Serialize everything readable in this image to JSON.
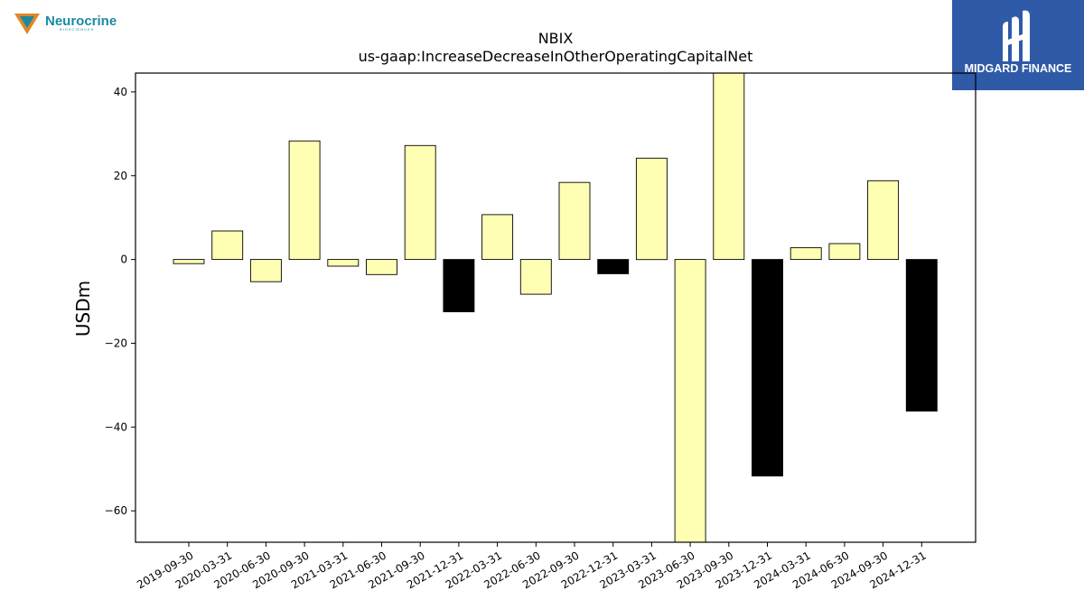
{
  "branding": {
    "left_logo_text": "Neurocrine",
    "left_logo_subtext": "BIOSCIENCES",
    "right_logo_text": "MIDGARD FINANCE"
  },
  "colors": {
    "positive_bar": "#ffffb3",
    "highlight_bar": "#000000",
    "bar_edge": "#000000",
    "right_logo_bg": "#2f5aa8",
    "left_logo_teal": "#1a8aa0",
    "left_logo_orange": "#e0872a"
  },
  "chart_data": {
    "type": "bar",
    "title": "NBIX",
    "subtitle": "us-gaap:IncreaseDecreaseInOtherOperatingCapitalNet",
    "xlabel": "",
    "ylabel": "USDm",
    "ylim": [
      -67.5,
      44.5
    ],
    "yticks": [
      40,
      20,
      0,
      -20,
      -40,
      -60
    ],
    "grid": false,
    "categories": [
      "2019-09-30",
      "2020-03-31",
      "2020-06-30",
      "2020-09-30",
      "2021-03-31",
      "2021-06-30",
      "2021-09-30",
      "2021-12-31",
      "2022-03-31",
      "2022-06-30",
      "2022-09-30",
      "2022-12-31",
      "2023-03-31",
      "2023-06-30",
      "2023-09-30",
      "2023-12-31",
      "2024-03-31",
      "2024-06-30",
      "2024-09-30",
      "2024-12-31"
    ],
    "values": [
      -1.0,
      6.8,
      -5.3,
      28.3,
      -1.6,
      -3.6,
      27.2,
      -12.5,
      10.7,
      -8.3,
      18.4,
      -3.4,
      24.2,
      -68.0,
      44.8,
      -51.7,
      2.8,
      3.8,
      18.8,
      -36.2
    ],
    "bar_colors": [
      "#ffffb3",
      "#ffffb3",
      "#ffffb3",
      "#ffffb3",
      "#ffffb3",
      "#ffffb3",
      "#ffffb3",
      "#000000",
      "#ffffb3",
      "#ffffb3",
      "#ffffb3",
      "#000000",
      "#ffffb3",
      "#ffffb3",
      "#ffffb3",
      "#000000",
      "#ffffb3",
      "#ffffb3",
      "#ffffb3",
      "#000000"
    ]
  }
}
